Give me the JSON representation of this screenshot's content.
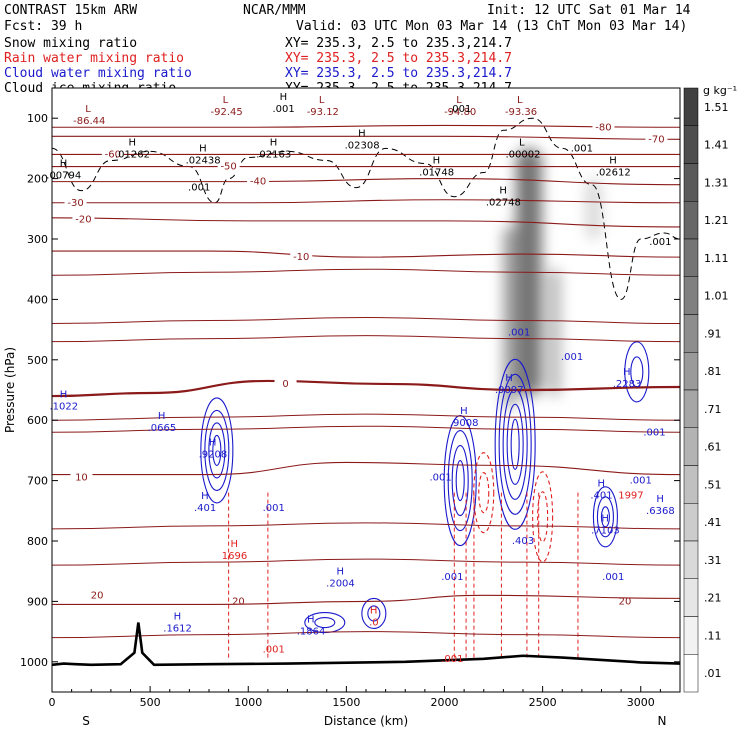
{
  "header": {
    "model": "CONTRAST 15km ARW",
    "center": "NCAR/MMM",
    "init": "Init: 12 UTC Sat 01 Mar 14",
    "fcst": "Fcst:   39 h",
    "valid": "Valid: 03 UTC Mon 03 Mar 14 (13 ChT Mon 03 Mar 14)"
  },
  "fields": [
    {
      "name": "Snow mixing ratio",
      "xy": "XY= 235.3,  2.5 to 235.3,214.7",
      "color": "#000000"
    },
    {
      "name": "Rain water mixing ratio",
      "xy": "XY= 235.3,  2.5 to 235.3,214.7",
      "color": "#e02020"
    },
    {
      "name": "Cloud water mixing ratio",
      "xy": "XY= 235.3,  2.5 to 235.3,214.7",
      "color": "#1a1acc"
    },
    {
      "name": "Cloud ice mixing ratio",
      "xy": "XY= 235.3,  2.5 to 235.3,214.7",
      "color": "#000000"
    }
  ],
  "colorbar": {
    "unit": "g kg⁻¹",
    "labels": [
      "1.51",
      "1.41",
      "1.31",
      "1.21",
      "1.11",
      "1.01",
      ".91",
      ".81",
      ".71",
      ".61",
      ".51",
      ".41",
      ".31",
      ".21",
      ".11",
      ".01"
    ]
  },
  "chart_data": {
    "type": "contour",
    "xlabel": "Distance (km)",
    "ylabel": "Pressure (hPa)",
    "xlim": [
      0,
      3200
    ],
    "ylim": [
      1050,
      50
    ],
    "xticks": [
      0,
      500,
      1000,
      1500,
      2000,
      2500,
      3000
    ],
    "yticks": [
      100,
      200,
      300,
      400,
      500,
      600,
      700,
      800,
      900,
      1000
    ],
    "side_labels": {
      "left": "S",
      "right": "N"
    },
    "temperature_contours": [
      {
        "label": "20",
        "p_at_x": [
          [
            0,
            905
          ],
          [
            800,
            905
          ],
          [
            1600,
            900
          ],
          [
            2200,
            890
          ],
          [
            3200,
            895
          ]
        ],
        "label_at": [
          230,
          890
        ]
      },
      {
        "label": "10",
        "p_at_x": [
          [
            0,
            690
          ],
          [
            800,
            690
          ],
          [
            1500,
            670
          ],
          [
            2300,
            675
          ],
          [
            3200,
            690
          ]
        ],
        "label_at": [
          150,
          695
        ]
      },
      {
        "label": "0",
        "p_at_x": [
          [
            0,
            560
          ],
          [
            500,
            555
          ],
          [
            1100,
            535
          ],
          [
            1700,
            540
          ],
          [
            2400,
            550
          ],
          [
            3200,
            545
          ]
        ],
        "label_at": [
          1190,
          540
        ]
      },
      {
        "label": "-10",
        "p_at_x": [
          [
            0,
            320
          ],
          [
            800,
            320
          ],
          [
            1600,
            330
          ],
          [
            2400,
            325
          ],
          [
            3200,
            330
          ]
        ],
        "label_at": [
          1270,
          330
        ]
      },
      {
        "label": "-20",
        "p_at_x": [
          [
            0,
            265
          ],
          [
            1000,
            270
          ],
          [
            2000,
            270
          ],
          [
            3200,
            280
          ]
        ],
        "label_at": [
          160,
          268
        ]
      },
      {
        "label": "-30",
        "p_at_x": [
          [
            0,
            240
          ],
          [
            1000,
            240
          ],
          [
            2000,
            235
          ],
          [
            3200,
            240
          ]
        ],
        "label_at": [
          120,
          240
        ]
      },
      {
        "label": "-40",
        "p_at_x": [
          [
            0,
            205
          ],
          [
            1000,
            205
          ],
          [
            2000,
            200
          ],
          [
            3200,
            210
          ]
        ],
        "label_at": [
          1050,
          205
        ]
      },
      {
        "label": "-50",
        "p_at_x": [
          [
            0,
            180
          ],
          [
            1000,
            180
          ],
          [
            2000,
            180
          ],
          [
            3200,
            180
          ]
        ],
        "label_at": [
          900,
          180
        ]
      },
      {
        "label": "-60",
        "p_at_x": [
          [
            0,
            160
          ],
          [
            1000,
            160
          ],
          [
            2000,
            160
          ],
          [
            3200,
            160
          ]
        ],
        "label_at": [
          310,
          160
        ]
      },
      {
        "label": "-70",
        "p_at_x": [
          [
            0,
            130
          ],
          [
            1000,
            130
          ],
          [
            2000,
            130
          ],
          [
            3200,
            135
          ]
        ],
        "label_at": [
          3080,
          135
        ]
      },
      {
        "label": "-80",
        "p_at_x": [
          [
            0,
            115
          ],
          [
            1000,
            115
          ],
          [
            2000,
            112
          ],
          [
            3200,
            115
          ]
        ],
        "label_at": [
          2810,
          115
        ]
      }
    ],
    "extrema_labels": [
      {
        "marker": "L",
        "value": "-86.44",
        "x": 190,
        "p": 100,
        "color": "#8b1a1a"
      },
      {
        "marker": "L",
        "value": "-92.45",
        "x": 890,
        "p": 85,
        "color": "#8b1a1a"
      },
      {
        "marker": "L",
        "value": "-93.12",
        "x": 1380,
        "p": 85,
        "color": "#8b1a1a"
      },
      {
        "marker": "L",
        "value": "-94.80",
        "x": 2080,
        "p": 85,
        "color": "#8b1a1a"
      },
      {
        "marker": "L",
        "value": "-93.36",
        "x": 2390,
        "p": 85,
        "color": "#8b1a1a"
      },
      {
        "marker": "H",
        "value": ".00794",
        "x": 60,
        "p": 190,
        "color": "#000000"
      },
      {
        "marker": "H",
        "value": ".01262",
        "x": 410,
        "p": 155,
        "color": "#000000"
      },
      {
        "marker": "H",
        "value": ".02438",
        "x": 770,
        "p": 165,
        "color": "#000000"
      },
      {
        "marker": "H",
        "value": ".02163",
        "x": 1130,
        "p": 155,
        "color": "#000000"
      },
      {
        "marker": "H",
        "value": ".02308",
        "x": 1580,
        "p": 140,
        "color": "#000000"
      },
      {
        "marker": "H",
        "value": ".01748",
        "x": 1960,
        "p": 185,
        "color": "#000000"
      },
      {
        "marker": "L",
        "value": ".00002",
        "x": 2400,
        "p": 155,
        "color": "#000000"
      },
      {
        "marker": "H",
        "value": ".02612",
        "x": 2860,
        "p": 185,
        "color": "#000000"
      },
      {
        "marker": "H",
        "value": ".02748",
        "x": 2300,
        "p": 235,
        "color": "#000000"
      },
      {
        "marker": "H",
        "value": ".001",
        "x": 1180,
        "p": 80,
        "color": "#000000"
      },
      {
        "marker": "",
        "value": ".001",
        "x": 2080,
        "p": 80,
        "color": "#000000"
      },
      {
        "marker": "",
        "value": ".001",
        "x": 2700,
        "p": 145,
        "color": "#000000"
      },
      {
        "marker": "",
        "value": ".001",
        "x": 750,
        "p": 210,
        "color": "#000000"
      },
      {
        "marker": "",
        "value": ".001",
        "x": 3100,
        "p": 300,
        "color": "#000000"
      },
      {
        "marker": "H",
        "value": ".1022",
        "x": 60,
        "p": 572,
        "color": "#1a1acc"
      },
      {
        "marker": "H",
        "value": ".0665",
        "x": 560,
        "p": 608,
        "color": "#1a1acc"
      },
      {
        "marker": "H",
        "value": ".9208",
        "x": 820,
        "p": 652,
        "color": "#1a1acc"
      },
      {
        "marker": "H",
        "value": ".401",
        "x": 780,
        "p": 740,
        "color": "#1a1acc"
      },
      {
        "marker": "",
        "value": ".001",
        "x": 1130,
        "p": 740,
        "color": "#1a1acc"
      },
      {
        "marker": "H",
        "value": "1696",
        "x": 930,
        "p": 820,
        "color": "#e02020"
      },
      {
        "marker": "H",
        "value": ".2004",
        "x": 1470,
        "p": 865,
        "color": "#1a1acc"
      },
      {
        "marker": "H",
        "value": ".1612",
        "x": 640,
        "p": 940,
        "color": "#1a1acc"
      },
      {
        "marker": "H",
        "value": ".1864",
        "x": 1320,
        "p": 945,
        "color": "#1a1acc"
      },
      {
        "marker": "H",
        "value": ".0",
        "x": 1640,
        "p": 930,
        "color": "#e02020"
      },
      {
        "marker": "",
        "value": ".001",
        "x": 1130,
        "p": 975,
        "color": "#e02020"
      },
      {
        "marker": "H",
        "value": ".9008",
        "x": 2100,
        "p": 600,
        "color": "#1a1acc"
      },
      {
        "marker": "H",
        "value": ".9097",
        "x": 2330,
        "p": 545,
        "color": "#1a1acc"
      },
      {
        "marker": "",
        "value": ".001",
        "x": 2380,
        "p": 450,
        "color": "#1a1acc"
      },
      {
        "marker": "",
        "value": ".001",
        "x": 2650,
        "p": 490,
        "color": "#1a1acc"
      },
      {
        "marker": "H",
        "value": ".2283",
        "x": 2930,
        "p": 535,
        "color": "#1a1acc"
      },
      {
        "marker": "",
        "value": ".001",
        "x": 3070,
        "p": 615,
        "color": "#1a1acc"
      },
      {
        "marker": "",
        "value": ".001",
        "x": 1980,
        "p": 690,
        "color": "#1a1acc"
      },
      {
        "marker": "H",
        "value": ".401",
        "x": 2800,
        "p": 720,
        "color": "#1a1acc"
      },
      {
        "marker": "",
        "value": ".001",
        "x": 3000,
        "p": 695,
        "color": "#1a1acc"
      },
      {
        "marker": "",
        "value": "1997",
        "x": 2950,
        "p": 720,
        "color": "#e02020"
      },
      {
        "marker": "H",
        "value": ".6368",
        "x": 3100,
        "p": 745,
        "color": "#1a1acc"
      },
      {
        "marker": "",
        "value": ".403",
        "x": 2400,
        "p": 795,
        "color": "#1a1acc"
      },
      {
        "marker": "H",
        "value": ".7103",
        "x": 2820,
        "p": 778,
        "color": "#1a1acc"
      },
      {
        "marker": "",
        "value": ".001",
        "x": 2860,
        "p": 855,
        "color": "#1a1acc"
      },
      {
        "marker": "",
        "value": ".001",
        "x": 2040,
        "p": 855,
        "color": "#1a1acc"
      },
      {
        "marker": "",
        "value": ".001",
        "x": 2040,
        "p": 990,
        "color": "#e02020"
      },
      {
        "marker": "",
        "value": "20",
        "x": 2920,
        "p": 895,
        "color": "#8b1a1a"
      },
      {
        "marker": "",
        "value": "20",
        "x": 950,
        "p": 895,
        "color": "#8b1a1a"
      }
    ],
    "terrain": [
      [
        0,
        1005
      ],
      [
        60,
        1003
      ],
      [
        120,
        1004
      ],
      [
        200,
        1005
      ],
      [
        350,
        1004
      ],
      [
        420,
        985
      ],
      [
        440,
        935
      ],
      [
        460,
        985
      ],
      [
        520,
        1005
      ],
      [
        800,
        1004
      ],
      [
        1200,
        1003
      ],
      [
        1800,
        1000
      ],
      [
        2200,
        995
      ],
      [
        2400,
        990
      ],
      [
        2600,
        993
      ],
      [
        3000,
        1001
      ],
      [
        3200,
        1003
      ]
    ],
    "snow_shading": [
      {
        "x": 2430,
        "p_top": 150,
        "p_bottom": 560,
        "width_km": 130,
        "intensity": 0.55
      },
      {
        "x": 2330,
        "p_top": 280,
        "p_bottom": 580,
        "width_km": 60,
        "intensity": 0.4
      },
      {
        "x": 2560,
        "p_top": 350,
        "p_bottom": 560,
        "width_km": 60,
        "intensity": 0.3
      },
      {
        "x": 2760,
        "p_top": 200,
        "p_bottom": 300,
        "width_km": 80,
        "intensity": 0.15
      }
    ]
  }
}
